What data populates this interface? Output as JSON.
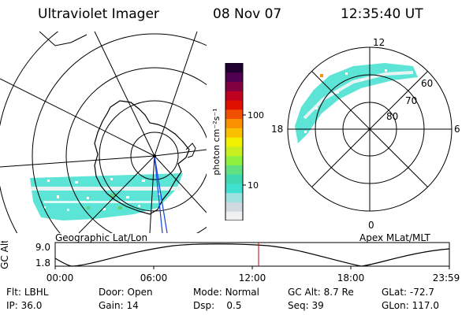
{
  "header": {
    "instrument": "Ultraviolet Imager",
    "date": "08 Nov 07",
    "time": "12:35:40 UT"
  },
  "colorbar": {
    "label": "photon cm⁻²s⁻¹",
    "ticks": [
      "100",
      "10"
    ],
    "colors": [
      "#f0f0f0",
      "#d0d8e0",
      "#9fe0e0",
      "#40e0d0",
      "#40d8b0",
      "#60e080",
      "#90f040",
      "#c8f020",
      "#f0f000",
      "#f8c000",
      "#f89000",
      "#f05000",
      "#e01000",
      "#c00020",
      "#800040",
      "#500050",
      "#200030"
    ]
  },
  "map_left": {
    "label": "Geographic Lat/Lon",
    "colors": {
      "aurora": "#40e0d0",
      "aurora_light": "#a0e8e8",
      "aurora_green": "#60d080",
      "coast": "#000000",
      "track": "#1040e0"
    }
  },
  "map_right": {
    "label": "Apex MLat/MLT",
    "mlt_labels": {
      "top": "12",
      "left": "18",
      "right": "6",
      "bottom": "0"
    },
    "lat_labels": [
      "60",
      "70",
      "80"
    ]
  },
  "orbit_plot": {
    "ylabel": "GC Alt",
    "yticks": [
      "9.0",
      "1.8"
    ],
    "xticks": [
      "00:00",
      "06:00",
      "12:00",
      "18:00",
      "23:59"
    ],
    "marker_color": "#cc0000"
  },
  "status": {
    "row1": [
      {
        "key": "Flt:",
        "val": "LBHL"
      },
      {
        "key": "Door:",
        "val": "Open"
      },
      {
        "key": "Mode:",
        "val": "Normal"
      },
      {
        "key": "GC Alt:",
        "val": "8.7 Re"
      },
      {
        "key": "GLat:",
        "val": "-72.7"
      }
    ],
    "row2": [
      {
        "key": "IP:",
        "val": "36.0"
      },
      {
        "key": "Gain:",
        "val": "14"
      },
      {
        "key": "Dsp:",
        "val": "0.5"
      },
      {
        "key": "Seq:",
        "val": "39"
      },
      {
        "key": "GLon:",
        "val": "117.0"
      }
    ]
  }
}
